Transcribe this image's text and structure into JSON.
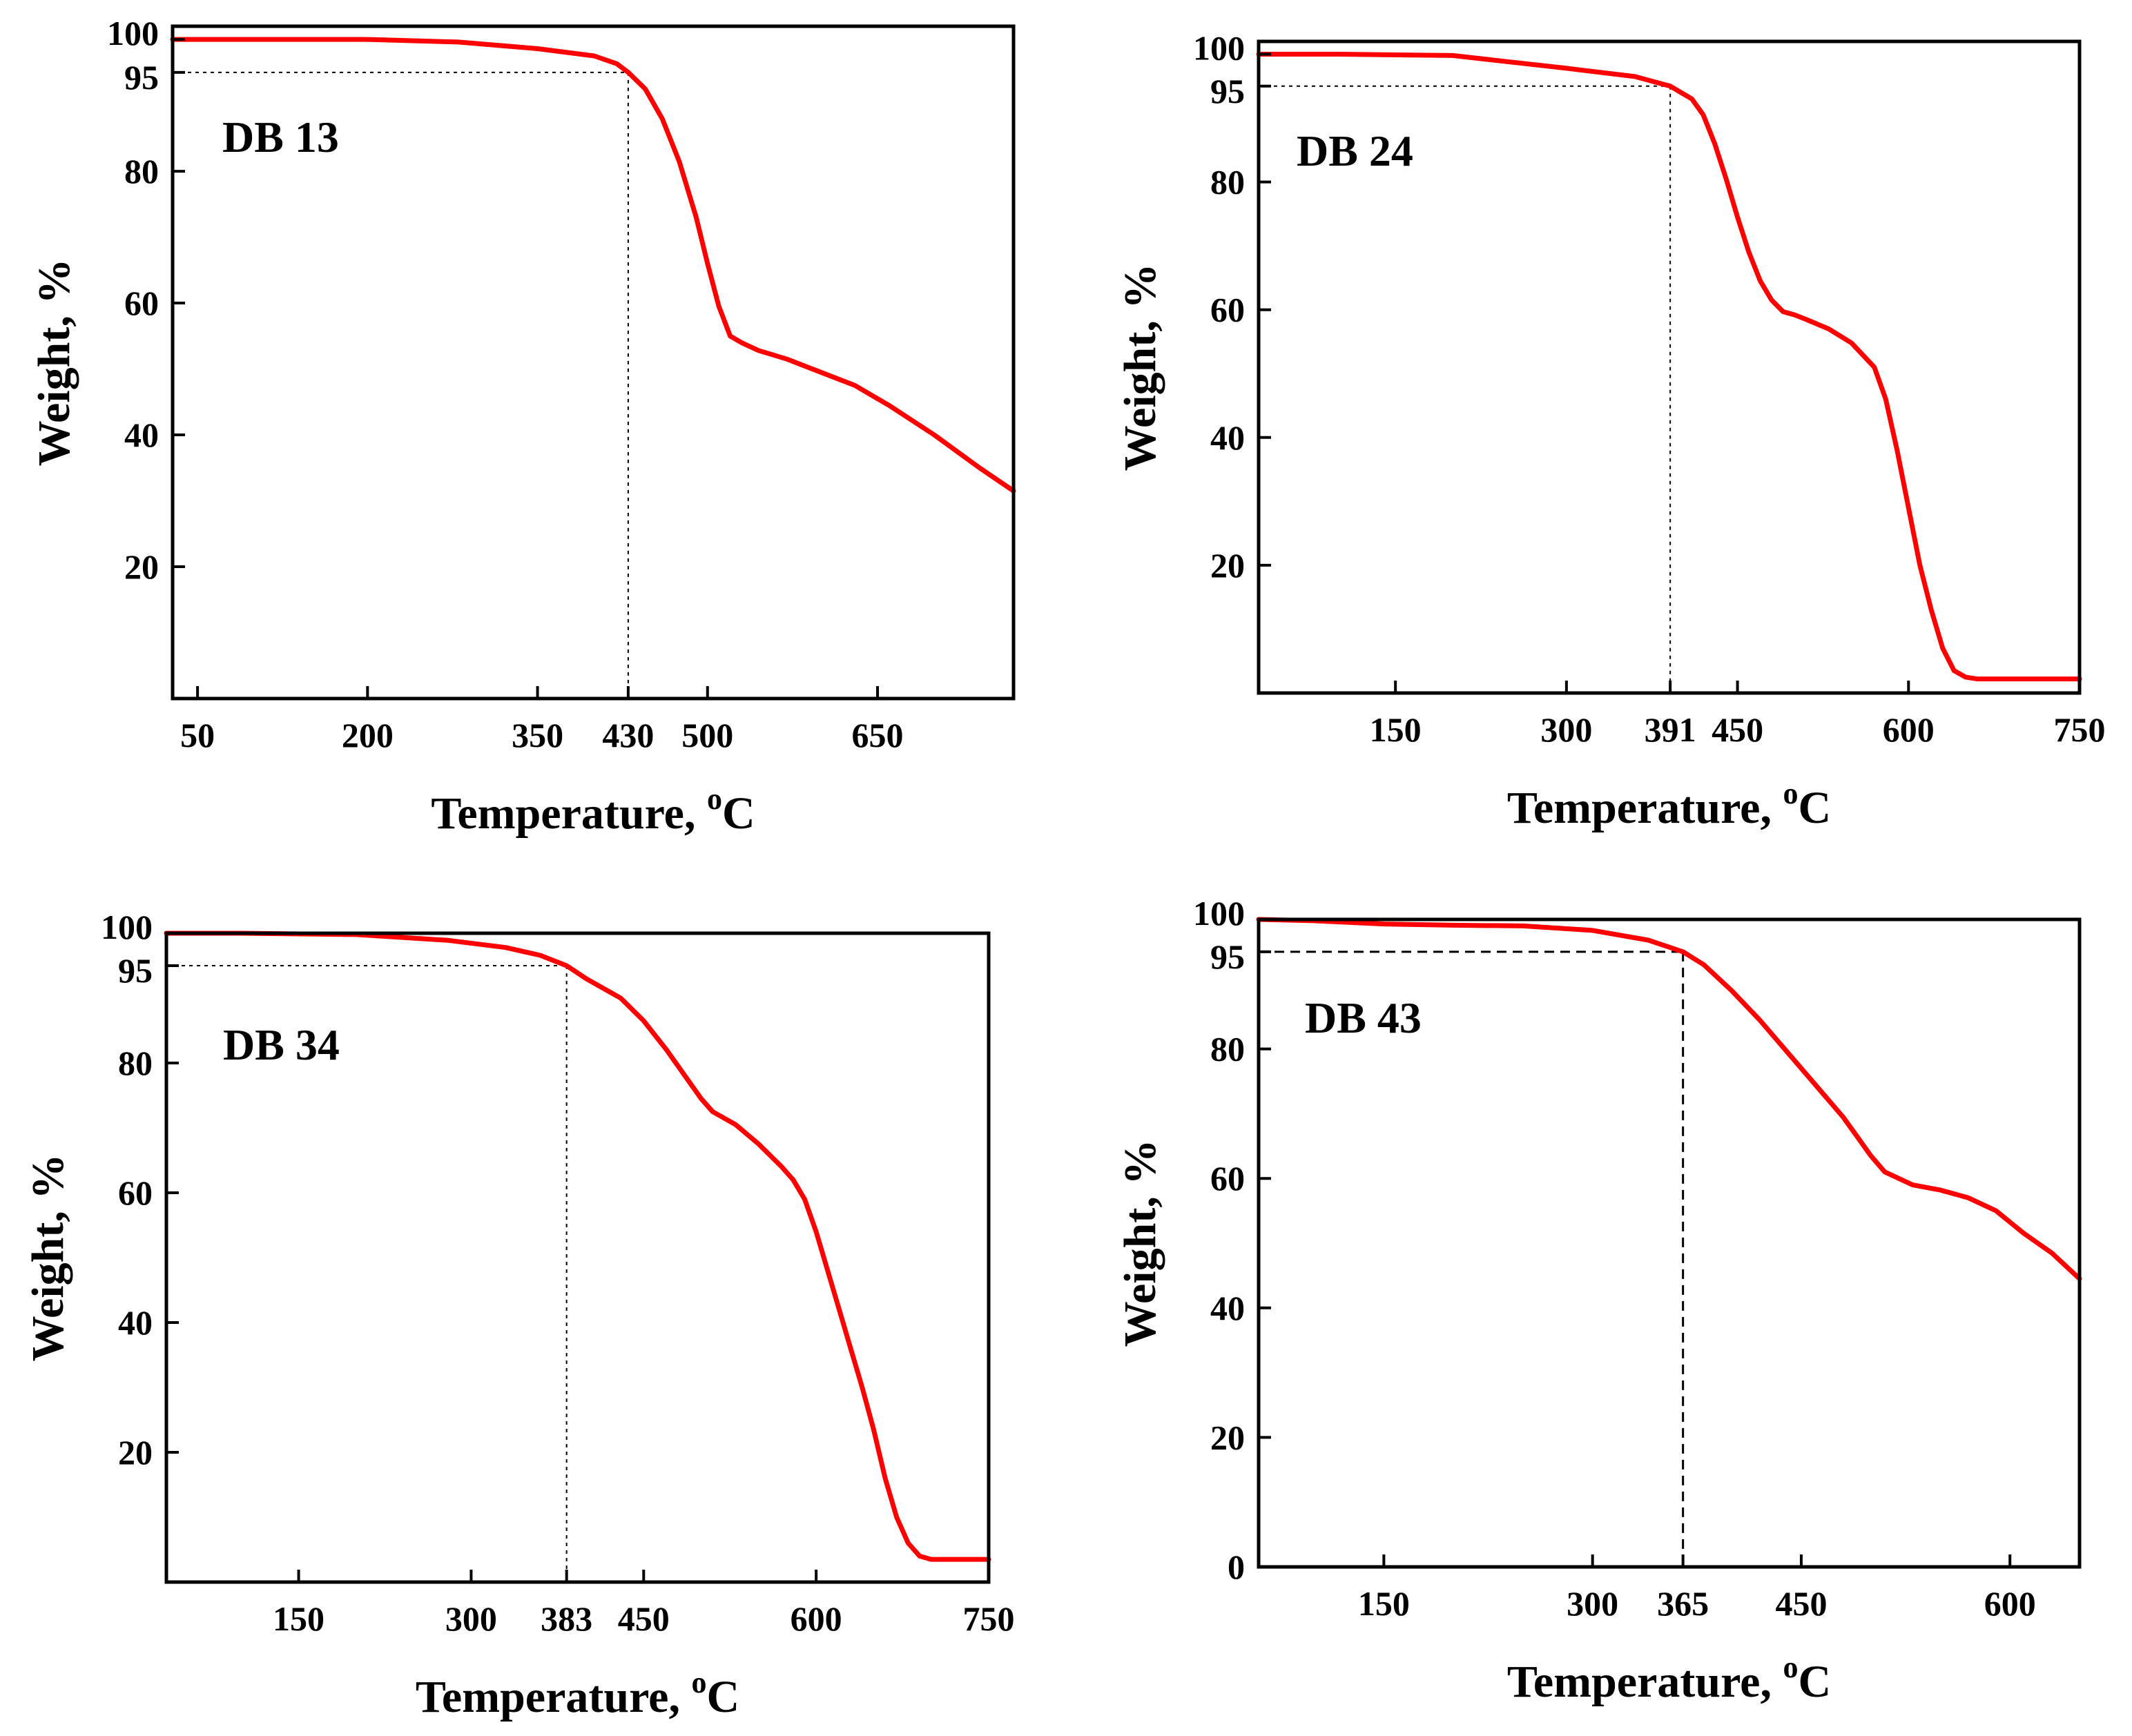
{
  "colors": {
    "curve": "#ff0000",
    "axes": "#000000",
    "guide": "#000000",
    "background": "#ffffff"
  },
  "chart_data": [
    {
      "type": "line",
      "title": "DB 13",
      "xlabel": "Temperature, ",
      "xlabel_sup": "o",
      "xlabel_unit": "C",
      "ylabel": "Weight, %",
      "xlim": [
        28,
        770
      ],
      "ylim": [
        0,
        102
      ],
      "xticks": [
        {
          "value": 50,
          "label": "50"
        },
        {
          "value": 200,
          "label": "200"
        },
        {
          "value": 350,
          "label": "350"
        },
        {
          "value": 430,
          "label": "430"
        },
        {
          "value": 500,
          "label": "500"
        },
        {
          "value": 650,
          "label": "650"
        }
      ],
      "yticks": [
        {
          "value": 20,
          "label": "20"
        },
        {
          "value": 40,
          "label": "40"
        },
        {
          "value": 60,
          "label": "60"
        },
        {
          "value": 80,
          "label": "80"
        },
        {
          "value": 95,
          "label": "95"
        },
        {
          "value": 100,
          "label": "100"
        }
      ],
      "guide": {
        "x": 430,
        "y": 95,
        "style": "dotted"
      },
      "series": [
        {
          "name": "DB 13",
          "x": [
            28,
            100,
            200,
            280,
            350,
            400,
            420,
            430,
            445,
            460,
            475,
            490,
            500,
            510,
            520,
            530,
            545,
            570,
            600,
            630,
            660,
            700,
            740,
            770
          ],
          "y": [
            100,
            100,
            100,
            99.6,
            98.6,
            97.5,
            96.3,
            95,
            92.5,
            88,
            81.5,
            73,
            66,
            59.5,
            55,
            54,
            52.8,
            51.5,
            49.5,
            47.5,
            44.5,
            40,
            35,
            31.5
          ]
        }
      ]
    },
    {
      "type": "line",
      "title": "DB 24",
      "xlabel": "Temperature, ",
      "xlabel_sup": "o",
      "xlabel_unit": "C",
      "ylabel": "Weight, %",
      "xlim": [
        30,
        750
      ],
      "ylim": [
        0,
        102
      ],
      "xticks": [
        {
          "value": 150,
          "label": "150"
        },
        {
          "value": 300,
          "label": "300"
        },
        {
          "value": 391,
          "label": "391"
        },
        {
          "value": 450,
          "label": "450"
        },
        {
          "value": 600,
          "label": "600"
        },
        {
          "value": 750,
          "label": "750"
        }
      ],
      "yticks": [
        {
          "value": 20,
          "label": "20"
        },
        {
          "value": 40,
          "label": "40"
        },
        {
          "value": 60,
          "label": "60"
        },
        {
          "value": 80,
          "label": "80"
        },
        {
          "value": 95,
          "label": "95"
        },
        {
          "value": 100,
          "label": "100"
        }
      ],
      "guide": {
        "x": 391,
        "y": 95,
        "style": "dotted"
      },
      "series": [
        {
          "name": "DB 24",
          "x": [
            30,
            100,
            200,
            300,
            360,
            391,
            410,
            420,
            430,
            440,
            450,
            460,
            470,
            480,
            490,
            500,
            510,
            530,
            550,
            570,
            580,
            590,
            600,
            610,
            620,
            630,
            640,
            650,
            660,
            700,
            750
          ],
          "y": [
            100,
            100,
            99.8,
            97.8,
            96.5,
            95,
            93,
            90.5,
            86,
            80.5,
            74.5,
            69,
            64.5,
            61.5,
            59.7,
            59.2,
            58.5,
            57,
            54.8,
            51,
            46,
            38,
            29,
            20,
            13,
            7,
            3.5,
            2.5,
            2.2,
            2.2,
            2.2
          ]
        }
      ]
    },
    {
      "type": "line",
      "title": "DB 34",
      "xlabel": "Temperature, ",
      "xlabel_sup": "o",
      "xlabel_unit": "C",
      "ylabel": "Weight, %",
      "xlim": [
        35,
        750
      ],
      "ylim": [
        0,
        100
      ],
      "xticks": [
        {
          "value": 150,
          "label": "150"
        },
        {
          "value": 300,
          "label": "300"
        },
        {
          "value": 383,
          "label": "383"
        },
        {
          "value": 450,
          "label": "450"
        },
        {
          "value": 600,
          "label": "600"
        },
        {
          "value": 750,
          "label": "750"
        }
      ],
      "yticks": [
        {
          "value": 20,
          "label": "20"
        },
        {
          "value": 40,
          "label": "40"
        },
        {
          "value": 60,
          "label": "60"
        },
        {
          "value": 80,
          "label": "80"
        },
        {
          "value": 95,
          "label": "95"
        },
        {
          "value": 100,
          "label": "100"
        }
      ],
      "guide": {
        "x": 383,
        "y": 95,
        "style": "dotted"
      },
      "series": [
        {
          "name": "DB 34",
          "x": [
            35,
            100,
            200,
            280,
            330,
            360,
            383,
            400,
            430,
            450,
            470,
            490,
            500,
            510,
            530,
            550,
            570,
            580,
            590,
            600,
            610,
            620,
            630,
            640,
            650,
            660,
            670,
            680,
            690,
            700,
            750
          ],
          "y": [
            100,
            100,
            99.8,
            98.9,
            97.8,
            96.6,
            95,
            93,
            90,
            86.5,
            82,
            77,
            74.5,
            72.5,
            70.5,
            67.5,
            64,
            62,
            59,
            54,
            48,
            42,
            36,
            30,
            23.5,
            16,
            10,
            6,
            4,
            3.5,
            3.5
          ]
        }
      ]
    },
    {
      "type": "line",
      "title": "DB 43",
      "xlabel": "Temperature, ",
      "xlabel_sup": "o",
      "xlabel_unit": "C",
      "ylabel": "Weight, %",
      "xlim": [
        60,
        650
      ],
      "ylim": [
        0,
        100
      ],
      "xticks": [
        {
          "value": 150,
          "label": "150"
        },
        {
          "value": 300,
          "label": "300"
        },
        {
          "value": 365,
          "label": "365"
        },
        {
          "value": 450,
          "label": "450"
        },
        {
          "value": 600,
          "label": "600"
        }
      ],
      "yticks": [
        {
          "value": 0,
          "label": "0"
        },
        {
          "value": 20,
          "label": "20"
        },
        {
          "value": 40,
          "label": "40"
        },
        {
          "value": 60,
          "label": "60"
        },
        {
          "value": 80,
          "label": "80"
        },
        {
          "value": 95,
          "label": "95"
        },
        {
          "value": 100,
          "label": "100"
        }
      ],
      "guide": {
        "x": 365,
        "y": 95,
        "style": "dashed"
      },
      "series": [
        {
          "name": "DB 43",
          "x": [
            60,
            100,
            150,
            200,
            250,
            300,
            340,
            365,
            380,
            400,
            420,
            440,
            460,
            480,
            490,
            500,
            510,
            530,
            550,
            570,
            590,
            610,
            630,
            650
          ],
          "y": [
            100,
            99.8,
            99.3,
            99.1,
            99,
            98.3,
            96.8,
            95,
            93,
            89,
            84.5,
            79.5,
            74.5,
            69.5,
            66.5,
            63.5,
            61,
            59,
            58.2,
            57,
            55,
            51.5,
            48.5,
            44.5
          ]
        }
      ]
    }
  ]
}
